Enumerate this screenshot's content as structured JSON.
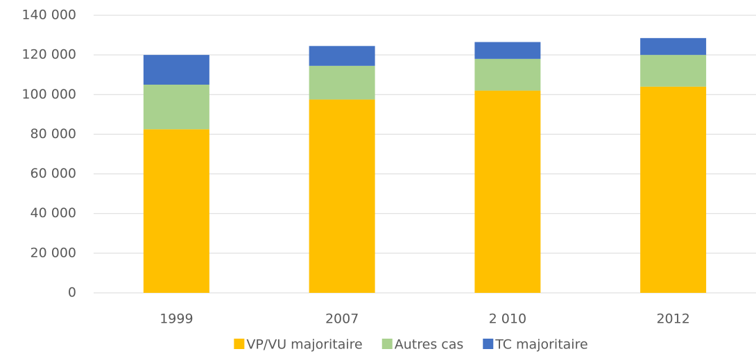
{
  "chart_data": {
    "type": "stacked_bar",
    "categories": [
      "1999",
      "2007",
      "2 010",
      "2012"
    ],
    "series": [
      {
        "name": "VP/VU majoritaire",
        "color": "#ffc000",
        "values": [
          82500,
          97500,
          102000,
          104000
        ]
      },
      {
        "name": "Autres cas",
        "color": "#a9d18e",
        "values": [
          22500,
          17000,
          16000,
          16000
        ]
      },
      {
        "name": "TC majoritaire",
        "color": "#4472c4",
        "values": [
          15000,
          10000,
          8500,
          8500
        ]
      }
    ],
    "ylim": [
      0,
      140000
    ],
    "yticks": [
      0,
      {
        "value": 20000,
        "label": "20 000"
      },
      {
        "value": 40000,
        "label": "40 000"
      },
      {
        "value": 60000,
        "label": "60 000"
      },
      {
        "value": 80000,
        "label": "80 000"
      },
      {
        "value": 100000,
        "label": "100 000"
      },
      {
        "value": 120000,
        "label": "120 000"
      },
      {
        "value": 140000,
        "label": "140 000"
      }
    ],
    "grid": true,
    "legend": "bottom"
  }
}
